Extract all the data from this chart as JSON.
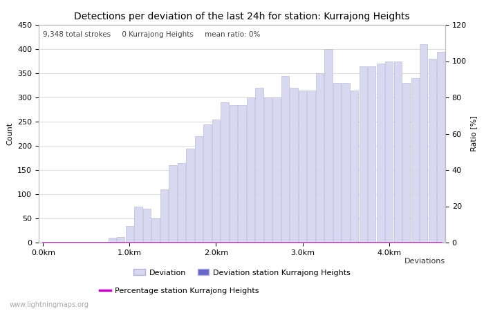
{
  "title": "Detections per deviation of the last 24h for station: Kurrajong Heights",
  "subtitle": "9,348 total strokes     0 Kurrajong Heights     mean ratio: 0%",
  "xlabel": "Deviations",
  "ylabel_left": "Count",
  "ylabel_right": "Ratio [%]",
  "x_tick_labels": [
    "0.0km",
    "1.0km",
    "2.0km",
    "3.0km",
    "4.0km"
  ],
  "x_tick_positions": [
    0,
    10,
    20,
    30,
    40
  ],
  "ylim_left": [
    0,
    450
  ],
  "ylim_right": [
    0,
    120
  ],
  "yticks_left": [
    0,
    50,
    100,
    150,
    200,
    250,
    300,
    350,
    400,
    450
  ],
  "yticks_right": [
    0,
    20,
    40,
    60,
    80,
    100,
    120
  ],
  "bar_color_light": "#d8d8f0",
  "bar_color_dark": "#6666cc",
  "bar_edgecolor": "#b0b0d8",
  "line_color": "#cc00cc",
  "background_color": "#ffffff",
  "grid_color": "#cccccc",
  "watermark": "www.lightningmaps.org",
  "legend_entries": [
    "Deviation",
    "Deviation station Kurrajong Heights",
    "Percentage station Kurrajong Heights"
  ],
  "counts": [
    0,
    0,
    0,
    0,
    0,
    0,
    0,
    0,
    10,
    12,
    35,
    75,
    70,
    50,
    110,
    160,
    165,
    195,
    220,
    245,
    255,
    290,
    285,
    285,
    300,
    320,
    300,
    300,
    345,
    320,
    315,
    315,
    350,
    400,
    330,
    330,
    315,
    365,
    365,
    370,
    375,
    375,
    330,
    340,
    410,
    380,
    395
  ],
  "station_counts": [
    0,
    0,
    0,
    0,
    0,
    0,
    0,
    0,
    0,
    0,
    0,
    0,
    0,
    0,
    0,
    0,
    0,
    0,
    0,
    0,
    0,
    0,
    0,
    0,
    0,
    0,
    0,
    0,
    0,
    0,
    0,
    0,
    0,
    0,
    0,
    0,
    0,
    0,
    0,
    0,
    0,
    0,
    0,
    0,
    0,
    0,
    0
  ],
  "percentages": [
    0,
    0,
    0,
    0,
    0,
    0,
    0,
    0,
    0,
    0,
    0,
    0,
    0,
    0,
    0,
    0,
    0,
    0,
    0,
    0,
    0,
    0,
    0,
    0,
    0,
    0,
    0,
    0,
    0,
    0,
    0,
    0,
    0,
    0,
    0,
    0,
    0,
    0,
    0,
    0,
    0,
    0,
    0,
    0,
    0,
    0,
    0
  ],
  "num_bars": 47,
  "title_fontsize": 10,
  "label_fontsize": 8,
  "tick_fontsize": 8,
  "legend_fontsize": 8,
  "subtitle_fontsize": 7.5
}
